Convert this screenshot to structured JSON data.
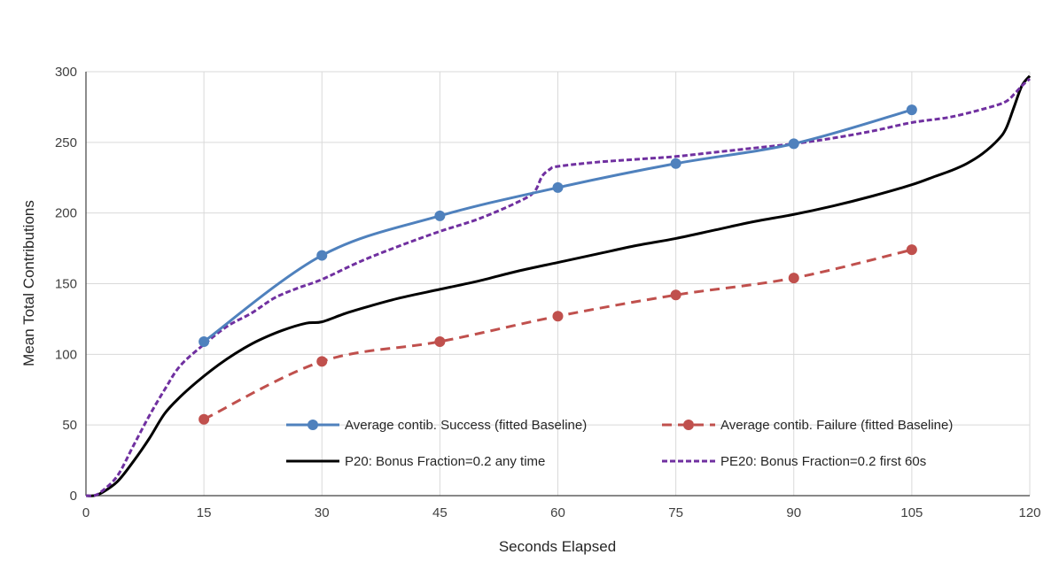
{
  "chart_data": {
    "type": "line",
    "title": "",
    "xlabel": "Seconds Elapsed",
    "ylabel": "Mean Total Contributions",
    "xlim": [
      0,
      120
    ],
    "ylim": [
      0,
      300
    ],
    "xticks": [
      0,
      15,
      30,
      45,
      60,
      75,
      90,
      105,
      120
    ],
    "yticks": [
      0,
      50,
      100,
      150,
      200,
      250,
      300
    ],
    "grid": true,
    "legend_position": "bottom-right",
    "series": [
      {
        "name": "Average contib. Success (fitted Baseline)",
        "color": "#4F81BD",
        "style": "solid-markers",
        "x": [
          15,
          30,
          45,
          60,
          75,
          90,
          105
        ],
        "y": [
          109,
          170,
          198,
          218,
          235,
          249,
          273
        ]
      },
      {
        "name": "Average contib. Failure (fitted Baseline)",
        "color": "#C0504D",
        "style": "dashed-markers",
        "x": [
          15,
          30,
          45,
          60,
          75,
          90,
          105
        ],
        "y": [
          54,
          95,
          109,
          127,
          142,
          154,
          174
        ]
      },
      {
        "name": "P20: Bonus Fraction=0.2 any time",
        "color": "#000000",
        "style": "solid",
        "x": [
          0,
          1,
          2,
          4,
          6,
          8,
          10,
          12,
          14,
          16,
          18,
          20,
          22,
          25,
          28,
          30,
          33,
          36,
          40,
          45,
          50,
          55,
          60,
          65,
          70,
          75,
          80,
          85,
          90,
          95,
          100,
          105,
          108,
          110,
          112,
          114,
          116,
          117,
          118,
          119,
          120
        ],
        "y": [
          0,
          0,
          2,
          10,
          24,
          40,
          58,
          70,
          80,
          89,
          97,
          104,
          110,
          117,
          122,
          123,
          129,
          134,
          140,
          146,
          152,
          159,
          165,
          171,
          177,
          182,
          188,
          194,
          199,
          205,
          212,
          220,
          226,
          230,
          235,
          242,
          252,
          260,
          275,
          290,
          297
        ]
      },
      {
        "name": "PE20: Bonus Fraction=0.2 first 60s",
        "color": "#7030A0",
        "style": "short-dash",
        "x": [
          0,
          1,
          2,
          4,
          6,
          8,
          10,
          12,
          15,
          18,
          21,
          24,
          27,
          30,
          35,
          40,
          45,
          50,
          55,
          57,
          58,
          59,
          60,
          65,
          70,
          75,
          80,
          85,
          90,
          95,
          100,
          105,
          110,
          115,
          117,
          118,
          119,
          120
        ],
        "y": [
          0,
          0,
          3,
          14,
          35,
          56,
          75,
          92,
          107,
          120,
          129,
          140,
          147,
          153,
          166,
          177,
          187,
          196,
          208,
          215,
          226,
          231,
          233,
          236,
          238,
          240,
          243,
          246,
          249,
          253,
          258,
          264,
          268,
          275,
          279,
          284,
          290,
          295
        ]
      }
    ]
  }
}
